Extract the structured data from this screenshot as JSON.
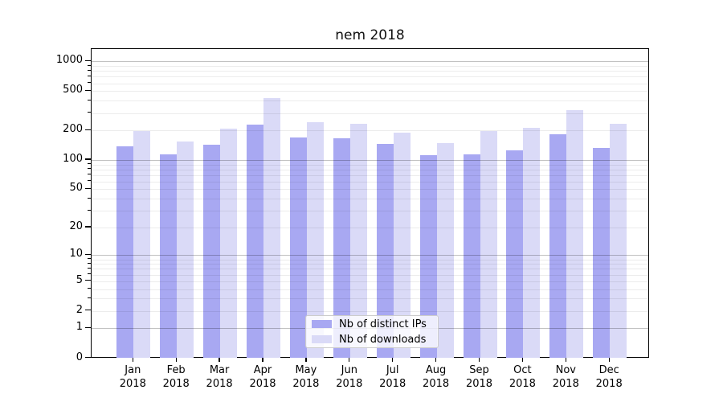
{
  "chart_data": {
    "type": "bar",
    "title": "nem 2018",
    "categories": [
      "Jan 2018",
      "Feb 2018",
      "Mar 2018",
      "Apr 2018",
      "May 2018",
      "Jun 2018",
      "Jul 2018",
      "Aug 2018",
      "Sep 2018",
      "Oct 2018",
      "Nov 2018",
      "Dec 2018"
    ],
    "x_tick_months": [
      "Jan",
      "Feb",
      "Mar",
      "Apr",
      "May",
      "Jun",
      "Jul",
      "Aug",
      "Sep",
      "Oct",
      "Nov",
      "Dec"
    ],
    "x_tick_year": "2018",
    "series": [
      {
        "name": "Nb of distinct IPs",
        "color": "#a8a8f2",
        "values": [
          139,
          115,
          142,
          231,
          170,
          165,
          147,
          111,
          114,
          126,
          184,
          132
        ]
      },
      {
        "name": "Nb of downloads",
        "color": "#dadaf7",
        "values": [
          198,
          155,
          208,
          425,
          243,
          234,
          190,
          148,
          196,
          213,
          320,
          235
        ]
      }
    ],
    "xlabel": "",
    "ylabel": "",
    "y_scale": "log10(1+y)",
    "ylim": [
      0,
      1330
    ],
    "y_tick_values": [
      1000,
      500,
      200,
      100,
      50,
      20,
      10,
      5,
      2,
      1,
      0
    ],
    "grid": {
      "major_values": [
        1,
        10,
        100,
        1000
      ],
      "minor_values": [
        2,
        3,
        4,
        5,
        6,
        7,
        8,
        9,
        20,
        30,
        40,
        50,
        60,
        70,
        80,
        90,
        200,
        300,
        400,
        500,
        600,
        700,
        800,
        900
      ]
    },
    "legend_position": "lower center"
  }
}
